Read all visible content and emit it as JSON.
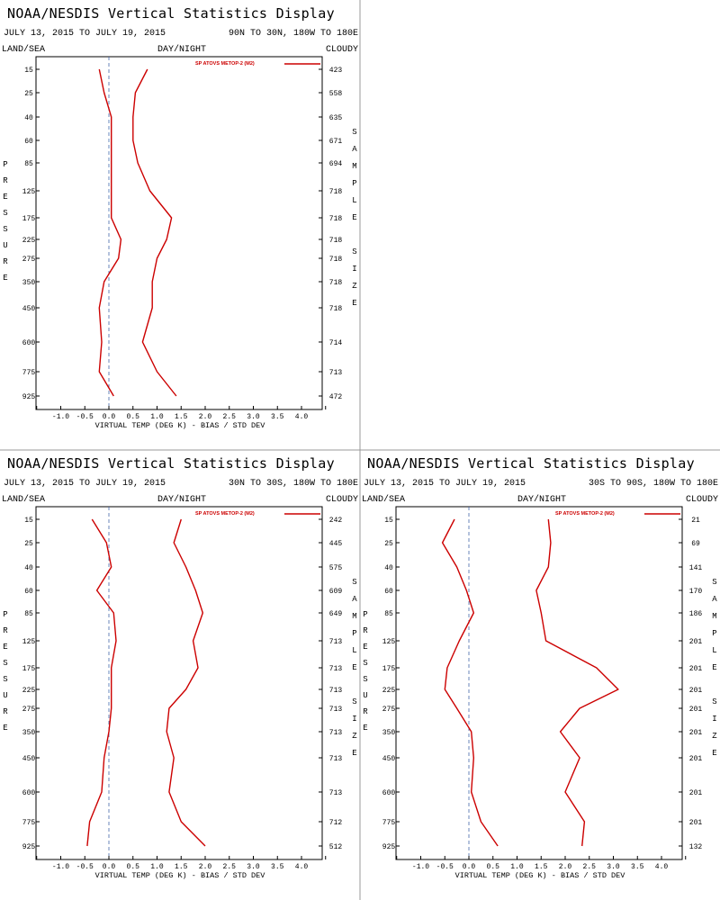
{
  "chart_data": [
    {
      "type": "line",
      "title": "NOAA/NESDIS Vertical Statistics Display",
      "date_range": "JULY 13, 2015 TO JULY 19, 2015",
      "region": "90N TO 30N, 180W TO 180E",
      "corner_labels": {
        "left": "LAND/SEA",
        "center": "DAY/NIGHT",
        "right": "CLOUDY"
      },
      "legend": "SP ATOVS METOP-2 (M2)",
      "ylabel": "PRESSURE",
      "y2label": "SAMPLE SIZE",
      "xlabel": "VIRTUAL TEMP (DEG K) - BIAS / STD DEV",
      "xlim": [
        -1.5,
        4.5
      ],
      "x_ticks": [
        "-1.0",
        "-0.5",
        "0.0",
        "0.5",
        "1.0",
        "1.5",
        "2.0",
        "2.5",
        "3.0",
        "3.5",
        "4.0"
      ],
      "pressure_levels": [
        "15",
        "25",
        "40",
        "60",
        "85",
        "125",
        "175",
        "225",
        "275",
        "350",
        "450",
        "600",
        "775",
        "925"
      ],
      "sample_size": [
        "423",
        "558",
        "635",
        "671",
        "694",
        "718",
        "718",
        "718",
        "718",
        "718",
        "718",
        "714",
        "713",
        "472"
      ],
      "series": [
        {
          "values": [
            -0.2,
            -0.1,
            0.05,
            0.05,
            0.05,
            0.05,
            0.05,
            0.25,
            0.2,
            -0.1,
            -0.2,
            -0.15,
            -0.2,
            0.1
          ]
        },
        {
          "values": [
            0.8,
            0.55,
            0.5,
            0.5,
            0.6,
            0.85,
            1.3,
            1.2,
            1.0,
            0.9,
            0.9,
            0.7,
            1.0,
            1.4
          ]
        }
      ]
    },
    {
      "type": "line",
      "title": "NOAA/NESDIS Vertical Statistics Display",
      "date_range": "JULY 13, 2015 TO JULY 19, 2015",
      "region": "30N TO 30S, 180W TO 180E",
      "corner_labels": {
        "left": "LAND/SEA",
        "center": "DAY/NIGHT",
        "right": "CLOUDY"
      },
      "legend": "SP ATOVS METOP-2 (M2)",
      "ylabel": "PRESSURE",
      "y2label": "SAMPLE SIZE",
      "xlabel": "VIRTUAL TEMP (DEG K) - BIAS / STD DEV",
      "xlim": [
        -1.5,
        4.5
      ],
      "x_ticks": [
        "-1.0",
        "-0.5",
        "0.0",
        "0.5",
        "1.0",
        "1.5",
        "2.0",
        "2.5",
        "3.0",
        "3.5",
        "4.0"
      ],
      "pressure_levels": [
        "15",
        "25",
        "40",
        "60",
        "85",
        "125",
        "175",
        "225",
        "275",
        "350",
        "450",
        "600",
        "775",
        "925"
      ],
      "sample_size": [
        "242",
        "445",
        "575",
        "609",
        "649",
        "713",
        "713",
        "713",
        "713",
        "713",
        "713",
        "713",
        "712",
        "512"
      ],
      "series": [
        {
          "values": [
            -0.35,
            -0.05,
            0.05,
            -0.25,
            0.1,
            0.15,
            0.05,
            0.05,
            0.05,
            0.0,
            -0.1,
            -0.15,
            -0.4,
            -0.45
          ]
        },
        {
          "values": [
            1.5,
            1.35,
            1.6,
            1.8,
            1.95,
            1.75,
            1.85,
            1.6,
            1.25,
            1.2,
            1.35,
            1.25,
            1.5,
            2.0
          ]
        }
      ]
    },
    {
      "type": "line",
      "title": "NOAA/NESDIS Vertical Statistics Display",
      "date_range": "JULY 13, 2015 TO JULY 19, 2015",
      "region": "30S TO 90S, 180W TO 180E",
      "corner_labels": {
        "left": "LAND/SEA",
        "center": "DAY/NIGHT",
        "right": "CLOUDY"
      },
      "legend": "SP ATOVS METOP-2 (M2)",
      "ylabel": "PRESSURE",
      "y2label": "SAMPLE SIZE",
      "xlabel": "VIRTUAL TEMP (DEG K) - BIAS / STD DEV",
      "xlim": [
        -1.5,
        4.5
      ],
      "x_ticks": [
        "-1.0",
        "-0.5",
        "0.0",
        "0.5",
        "1.0",
        "1.5",
        "2.0",
        "2.5",
        "3.0",
        "3.5",
        "4.0"
      ],
      "pressure_levels": [
        "15",
        "25",
        "40",
        "60",
        "85",
        "125",
        "175",
        "225",
        "275",
        "350",
        "450",
        "600",
        "775",
        "925"
      ],
      "sample_size": [
        "21",
        "69",
        "141",
        "170",
        "186",
        "201",
        "201",
        "201",
        "201",
        "201",
        "201",
        "201",
        "201",
        "132"
      ],
      "series": [
        {
          "values": [
            -0.3,
            -0.55,
            -0.25,
            -0.05,
            0.1,
            -0.2,
            -0.45,
            -0.5,
            -0.25,
            0.05,
            0.1,
            0.05,
            0.25,
            0.6
          ]
        },
        {
          "values": [
            1.65,
            1.7,
            1.65,
            1.4,
            1.5,
            1.6,
            2.65,
            3.1,
            2.3,
            1.9,
            2.3,
            2.0,
            2.4,
            2.35
          ]
        }
      ]
    }
  ]
}
